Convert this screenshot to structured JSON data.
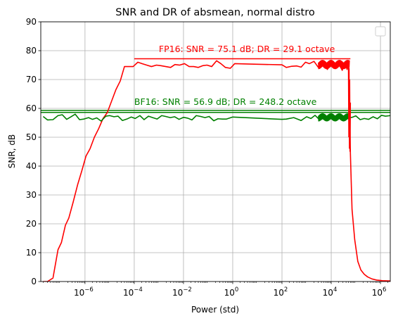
{
  "chart_data": {
    "type": "line",
    "title": "SNR and DR of absmean, normal distro",
    "xlabel": "Power (std)",
    "ylabel": "SNR, dB",
    "xscale": "log",
    "xlim": [
      1.6e-08,
      2500000.0
    ],
    "ylim": [
      0,
      90
    ],
    "grid": true,
    "legend": "top-right",
    "yticks": [
      0,
      10,
      20,
      30,
      40,
      50,
      60,
      70,
      80,
      90
    ],
    "xticks": [
      {
        "value": 1e-06,
        "label": "10",
        "exp": "−6"
      },
      {
        "value": 0.0001,
        "label": "10",
        "exp": "−4"
      },
      {
        "value": 0.01,
        "label": "10",
        "exp": "−2"
      },
      {
        "value": 1,
        "label": "10",
        "exp": "0"
      },
      {
        "value": 100,
        "label": "10",
        "exp": "2"
      },
      {
        "value": 10000.0,
        "label": "10",
        "exp": "4"
      },
      {
        "value": 1000000.0,
        "label": "10",
        "exp": "6"
      }
    ],
    "annotations": [
      {
        "text": "FP16: SNR = 75.1 dB; DR = 29.1 octave",
        "color": "#ff0000",
        "x": 0.001,
        "y": 79.5
      },
      {
        "text": "BF16: SNR = 56.9 dB; DR = 248.2 octave",
        "color": "#008000",
        "x": 0.0001,
        "y": 61.2
      }
    ],
    "hlines": [
      {
        "color": "#ff0000",
        "y": 77.2,
        "x0": 0.0001,
        "x1": 60000.0
      },
      {
        "color": "#008000",
        "y": 59.3,
        "x0": 1.6e-08,
        "x1": 2500000.0
      },
      {
        "color": "#008000",
        "y": 58.6,
        "x0": 1.6e-08,
        "x1": 2500000.0
      }
    ],
    "series": [
      {
        "color": "#ff0000",
        "x": [
          2e-08,
          3e-08,
          5e-08,
          8e-08,
          1.1e-07,
          1.6e-07,
          2.2e-07,
          3.3e-07,
          5e-07,
          7.5e-07,
          1.1e-06,
          1.6e-06,
          2.4e-06,
          3.6e-06,
          5.4e-06,
          8e-06,
          1.2e-05,
          1.8e-05,
          2.7e-05,
          4e-05,
          6e-05,
          9e-05,
          0.00014,
          0.00021,
          0.00032,
          0.0005,
          0.0008,
          0.0012,
          0.0019,
          0.003,
          0.0045,
          0.007,
          0.011,
          0.017,
          0.026,
          0.04,
          0.06,
          0.09,
          0.14,
          0.22,
          0.33,
          0.5,
          0.8,
          1.2,
          10,
          100,
          150,
          250,
          400,
          600,
          900,
          1300,
          2000,
          3000,
          4500,
          7000,
          10000.0,
          14000.0,
          20000.0,
          28000.0,
          36000.0,
          44000.0,
          50000.0,
          55000.0,
          60000.0,
          70000.0,
          90000.0,
          120000.0,
          160000.0,
          220000.0,
          300000.0,
          450000.0,
          700000.0,
          1200000.0,
          2500000.0
        ],
        "y": [
          0,
          0,
          1.2,
          11,
          13.5,
          19.5,
          22,
          27.5,
          33.5,
          38.5,
          43.5,
          46,
          50,
          53,
          56.5,
          58.5,
          62.5,
          66.5,
          69.5,
          74.5,
          74.5,
          74.5,
          76,
          75.5,
          75,
          74.5,
          75,
          74.8,
          74.5,
          74.2,
          75.2,
          75,
          75.5,
          74.5,
          74.5,
          74.2,
          74.8,
          75,
          74.5,
          76.5,
          75.5,
          74.2,
          73.9,
          75.5,
          75.3,
          75.1,
          74.2,
          74.6,
          74.7,
          74.3,
          76,
          75.5,
          76.3,
          74.2,
          75.8,
          73.5,
          76.5,
          74,
          75.5,
          73.2,
          76,
          73.5,
          75.5,
          64,
          44.5,
          25,
          14.5,
          7,
          4,
          2.5,
          1.6,
          0.9,
          0.5,
          0.3,
          0.2
        ]
      },
      {
        "color": "#008000",
        "x": [
          2e-08,
          3e-08,
          5e-08,
          8e-08,
          1.2e-07,
          1.8e-07,
          2.7e-07,
          4e-07,
          6e-07,
          9e-07,
          1.4e-06,
          2e-06,
          3e-06,
          4.5e-06,
          7e-06,
          1e-05,
          1.5e-05,
          2.2e-05,
          3.3e-05,
          5e-05,
          7.5e-05,
          0.00011,
          0.00017,
          0.00025,
          0.00038,
          0.00056,
          0.00085,
          0.0013,
          0.0019,
          0.0029,
          0.0044,
          0.0066,
          0.01,
          0.015,
          0.022,
          0.033,
          0.05,
          0.075,
          0.11,
          0.17,
          0.25,
          0.38,
          0.56,
          1,
          10,
          100,
          150,
          300,
          600,
          1000,
          1500,
          2200,
          3300,
          5000,
          7500,
          10000.0,
          15000.0,
          22000.0,
          33000.0,
          45000.0,
          55000.0,
          70000.0,
          100000.0,
          150000.0,
          220000.0,
          330000.0,
          500000.0,
          750000.0,
          1100000.0,
          1600000.0,
          2500000.0
        ],
        "y": [
          57.2,
          56,
          56.1,
          57.5,
          57.8,
          56.2,
          57.1,
          58,
          56.1,
          56.3,
          56.8,
          56.2,
          56.7,
          55.6,
          57.3,
          57.5,
          57.1,
          57.3,
          55.8,
          56.3,
          57,
          56.5,
          57.5,
          56.1,
          57.3,
          56.8,
          56.3,
          57.5,
          57.2,
          56.8,
          57.1,
          56.2,
          56.9,
          56.6,
          56,
          57.5,
          57.2,
          56.8,
          57.2,
          55.7,
          56.4,
          56.3,
          56.3,
          57,
          56.6,
          56.2,
          56.3,
          56.8,
          55.8,
          57.1,
          56.5,
          57.6,
          56.1,
          56.5,
          57.1,
          58,
          55.8,
          57.2,
          57.3,
          57.8,
          56.8,
          56.9,
          57.4,
          56.1,
          56.5,
          56.2,
          57.1,
          56.4,
          57.6,
          57.3,
          57.5
        ]
      }
    ]
  }
}
